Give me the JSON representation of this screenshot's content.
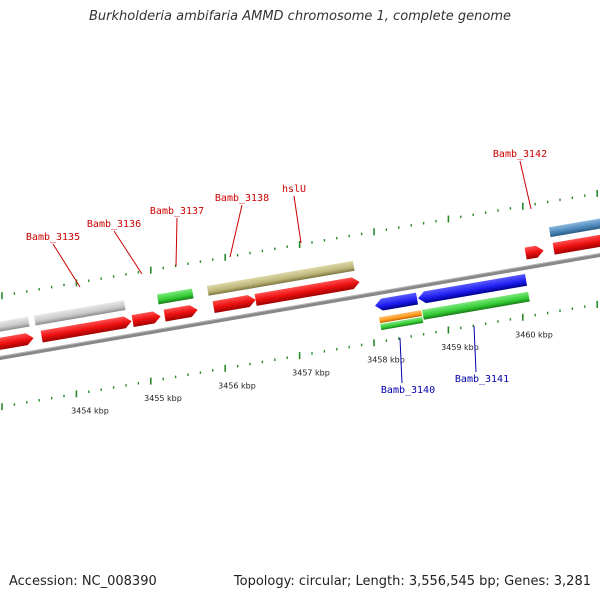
{
  "title": "Burkholderia ambifaria AMMD chromosome 1, complete genome",
  "footer": {
    "accession": "Accession: NC_008390",
    "topology": "Topology: circular; Length: 3,556,545 bp; Genes: 3,281"
  },
  "colors": {
    "backbone": "#888888",
    "tick": "#2a8a2a",
    "forward_label": "#cc0000",
    "reverse_label": "#0000aa",
    "cds_red": "#ee1111",
    "gene_grey": "#c8c8c8",
    "gene_green": "#33cc33",
    "gene_olive": "#bdb67a",
    "gene_blue": "#1a1aee",
    "gene_orange": "#ff9a1a",
    "gene_steelblue": "#4a86b8"
  },
  "kbp_ticks": [
    {
      "label": "3454 kbp"
    },
    {
      "label": "3455 kbp"
    },
    {
      "label": "3456 kbp"
    },
    {
      "label": "3457 kbp"
    },
    {
      "label": "3458 kbp"
    },
    {
      "label": "3459 kbp"
    },
    {
      "label": "3460 kbp"
    }
  ],
  "forward_labels": [
    {
      "text": "Bamb_3135"
    },
    {
      "text": "Bamb_3136"
    },
    {
      "text": "Bamb_3137"
    },
    {
      "text": "Bamb_3138"
    },
    {
      "text": "hslU"
    },
    {
      "text": "Bamb_3142"
    }
  ],
  "reverse_labels": [
    {
      "text": "Bamb_3140"
    },
    {
      "text": "Bamb_3141"
    }
  ]
}
